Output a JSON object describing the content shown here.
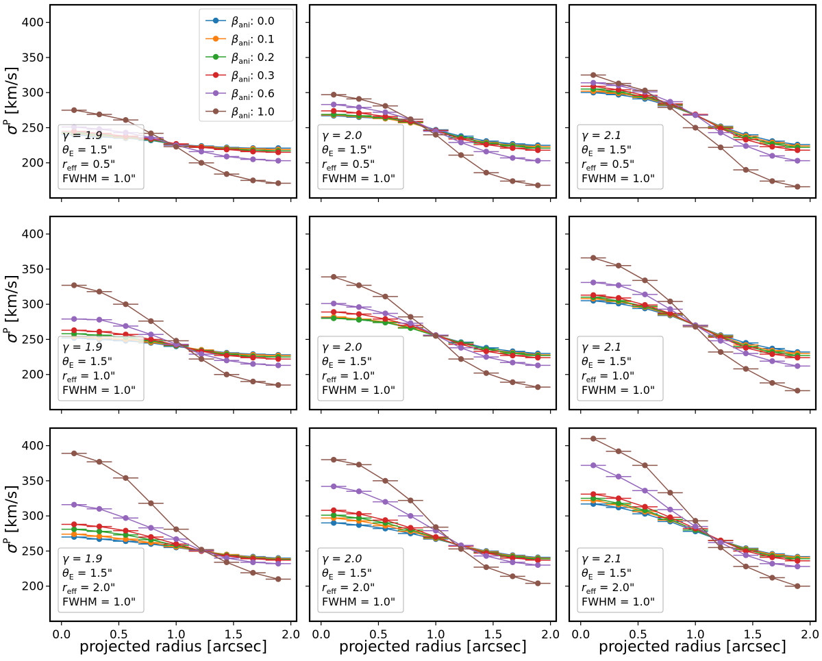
{
  "figure": {
    "ylabel_main": "σ",
    "ylabel_sup": "P",
    "ylabel_unit": " [km/s]",
    "xlabel": "projected radius [arcsec]",
    "x_ticks": [
      "0.0",
      "0.5",
      "1.0",
      "1.5",
      "2.0"
    ],
    "y_ticks": [
      "200",
      "250",
      "300",
      "350",
      "400"
    ]
  },
  "legend": {
    "entries": [
      {
        "label_main": "β",
        "label_sub": "ani",
        "label_val": ": 0.0",
        "color": "#1f77b4"
      },
      {
        "label_main": "β",
        "label_sub": "ani",
        "label_val": ": 0.1",
        "color": "#ff7f0e"
      },
      {
        "label_main": "β",
        "label_sub": "ani",
        "label_val": ": 0.2",
        "color": "#2ca02c"
      },
      {
        "label_main": "β",
        "label_sub": "ani",
        "label_val": ": 0.3",
        "color": "#d62728"
      },
      {
        "label_main": "β",
        "label_sub": "ani",
        "label_val": ": 0.6",
        "color": "#9467bd"
      },
      {
        "label_main": "β",
        "label_sub": "ani",
        "label_val": ": 1.0",
        "color": "#8c564b"
      }
    ]
  },
  "chart_data": [
    {
      "type": "line",
      "title": "",
      "xlabel": "projected radius [arcsec]",
      "ylabel": "σ^P [km/s]",
      "xlim": [
        -0.1,
        2.05
      ],
      "ylim": [
        150,
        425
      ],
      "row": 1,
      "col": 1,
      "annotation": [
        "γ = 1.9",
        "θ_E = 1.5\"",
        "r_eff = 0.5\"",
        "FWHM = 1.0\""
      ],
      "x": [
        0.11,
        0.33,
        0.56,
        0.78,
        1.0,
        1.22,
        1.44,
        1.67,
        1.89
      ],
      "series": [
        {
          "name": "β_ani: 0.0",
          "values": [
            240,
            237,
            235,
            232,
            226,
            224,
            222,
            221,
            221
          ]
        },
        {
          "name": "β_ani: 0.1",
          "values": [
            242,
            239,
            236,
            233,
            226,
            223,
            221,
            220,
            219
          ]
        },
        {
          "name": "β_ani: 0.2",
          "values": [
            243,
            240,
            237,
            233,
            226,
            222,
            220,
            218,
            217
          ]
        },
        {
          "name": "β_ani: 0.3",
          "values": [
            245,
            242,
            238,
            234,
            227,
            222,
            219,
            216,
            215
          ]
        },
        {
          "name": "β_ani: 0.6",
          "values": [
            251,
            248,
            243,
            236,
            225,
            216,
            209,
            205,
            203
          ]
        },
        {
          "name": "β_ani: 1.0",
          "values": [
            275,
            269,
            261,
            242,
            223,
            200,
            184,
            175,
            171
          ]
        }
      ]
    },
    {
      "type": "line",
      "title": "",
      "xlabel": "projected radius [arcsec]",
      "ylabel": "σ^P [km/s]",
      "xlim": [
        -0.1,
        2.05
      ],
      "ylim": [
        150,
        425
      ],
      "row": 1,
      "col": 2,
      "annotation": [
        "γ = 2.0",
        "θ_E = 1.5\"",
        "r_eff = 0.5\"",
        "FWHM = 1.0\""
      ],
      "x": [
        0.11,
        0.33,
        0.56,
        0.78,
        1.0,
        1.22,
        1.44,
        1.67,
        1.89
      ],
      "series": [
        {
          "name": "β_ani: 0.0",
          "values": [
            267,
            265,
            263,
            258,
            247,
            238,
            231,
            227,
            225
          ]
        },
        {
          "name": "β_ani: 0.1",
          "values": [
            268,
            266,
            263,
            257,
            246,
            236,
            229,
            225,
            223
          ]
        },
        {
          "name": "β_ani: 0.2",
          "values": [
            269,
            267,
            264,
            258,
            246,
            236,
            228,
            224,
            221
          ]
        },
        {
          "name": "β_ani: 0.3",
          "values": [
            274,
            271,
            266,
            259,
            246,
            234,
            226,
            221,
            218
          ]
        },
        {
          "name": "β_ani: 0.6",
          "values": [
            283,
            279,
            272,
            262,
            245,
            229,
            216,
            207,
            203
          ]
        },
        {
          "name": "β_ani: 1.0",
          "values": [
            297,
            291,
            281,
            262,
            240,
            211,
            186,
            174,
            168
          ]
        }
      ]
    },
    {
      "type": "line",
      "title": "",
      "xlabel": "projected radius [arcsec]",
      "ylabel": "σ^P [km/s]",
      "xlim": [
        -0.1,
        2.05
      ],
      "ylim": [
        150,
        425
      ],
      "row": 1,
      "col": 3,
      "annotation": [
        "γ = 2.1",
        "θ_E = 1.5\"",
        "r_eff = 0.5\"",
        "FWHM = 1.0\""
      ],
      "x": [
        0.11,
        0.33,
        0.56,
        0.78,
        1.0,
        1.22,
        1.44,
        1.67,
        1.89
      ],
      "series": [
        {
          "name": "β_ani: 0.0",
          "values": [
            300,
            297,
            291,
            281,
            268,
            252,
            240,
            231,
            226
          ]
        },
        {
          "name": "β_ani: 0.1",
          "values": [
            302,
            299,
            293,
            282,
            268,
            251,
            238,
            229,
            224
          ]
        },
        {
          "name": "β_ani: 0.2",
          "values": [
            305,
            301,
            294,
            283,
            268,
            250,
            236,
            227,
            222
          ]
        },
        {
          "name": "β_ani: 0.3",
          "values": [
            309,
            304,
            296,
            284,
            269,
            249,
            233,
            223,
            218
          ]
        },
        {
          "name": "β_ani: 0.6",
          "values": [
            314,
            310,
            301,
            287,
            268,
            243,
            224,
            210,
            203
          ]
        },
        {
          "name": "β_ani: 1.0",
          "values": [
            325,
            313,
            303,
            279,
            250,
            222,
            190,
            174,
            166
          ]
        }
      ]
    },
    {
      "type": "line",
      "title": "",
      "xlabel": "projected radius [arcsec]",
      "ylabel": "σ^P [km/s]",
      "xlim": [
        -0.1,
        2.05
      ],
      "ylim": [
        150,
        425
      ],
      "row": 2,
      "col": 1,
      "annotation": [
        "γ = 1.9",
        "θ_E = 1.5\"",
        "r_eff = 1.0\"",
        "FWHM = 1.0\""
      ],
      "x": [
        0.11,
        0.33,
        0.56,
        0.78,
        1.0,
        1.22,
        1.44,
        1.67,
        1.89
      ],
      "series": [
        {
          "name": "β_ani: 0.0",
          "values": [
            252,
            250,
            248,
            245,
            240,
            235,
            231,
            229,
            228
          ]
        },
        {
          "name": "β_ani: 0.1",
          "values": [
            254,
            252,
            250,
            246,
            241,
            235,
            230,
            228,
            227
          ]
        },
        {
          "name": "β_ani: 0.2",
          "values": [
            258,
            256,
            253,
            248,
            241,
            234,
            229,
            226,
            225
          ]
        },
        {
          "name": "β_ani: 0.3",
          "values": [
            263,
            261,
            257,
            250,
            242,
            233,
            227,
            224,
            222
          ]
        },
        {
          "name": "β_ani: 0.6",
          "values": [
            279,
            278,
            269,
            257,
            243,
            229,
            220,
            215,
            213
          ]
        },
        {
          "name": "β_ani: 1.0",
          "values": [
            327,
            318,
            300,
            276,
            248,
            222,
            200,
            190,
            185
          ]
        }
      ]
    },
    {
      "type": "line",
      "title": "",
      "xlabel": "projected radius [arcsec]",
      "ylabel": "σ^P [km/s]",
      "xlim": [
        -0.1,
        2.05
      ],
      "ylim": [
        150,
        425
      ],
      "row": 2,
      "col": 2,
      "annotation": [
        "γ = 2.0",
        "θ_E = 1.5\"",
        "r_eff = 1.0\"",
        "FWHM = 1.0\""
      ],
      "x": [
        0.11,
        0.33,
        0.56,
        0.78,
        1.0,
        1.22,
        1.44,
        1.67,
        1.89
      ],
      "series": [
        {
          "name": "β_ani: 0.0",
          "values": [
            281,
            278,
            274,
            267,
            256,
            246,
            238,
            233,
            230
          ]
        },
        {
          "name": "β_ani: 0.1",
          "values": [
            282,
            279,
            275,
            267,
            256,
            245,
            236,
            231,
            228
          ]
        },
        {
          "name": "β_ani: 0.2",
          "values": [
            280,
            278,
            274,
            266,
            255,
            245,
            236,
            230,
            227
          ]
        },
        {
          "name": "β_ani: 0.3",
          "values": [
            289,
            286,
            279,
            270,
            256,
            243,
            233,
            227,
            224
          ]
        },
        {
          "name": "β_ani: 0.6",
          "values": [
            301,
            296,
            287,
            273,
            256,
            238,
            225,
            217,
            213
          ]
        },
        {
          "name": "β_ani: 1.0",
          "values": [
            339,
            327,
            311,
            282,
            255,
            222,
            202,
            189,
            182
          ]
        }
      ]
    },
    {
      "type": "line",
      "title": "",
      "xlabel": "projected radius [arcsec]",
      "ylabel": "σ^P [km/s]",
      "xlim": [
        -0.1,
        2.05
      ],
      "ylim": [
        150,
        425
      ],
      "row": 2,
      "col": 3,
      "annotation": [
        "γ = 2.1",
        "θ_E = 1.5\"",
        "r_eff = 1.0\"",
        "FWHM = 1.0\""
      ],
      "x": [
        0.11,
        0.33,
        0.56,
        0.78,
        1.0,
        1.22,
        1.44,
        1.67,
        1.89
      ],
      "series": [
        {
          "name": "β_ani: 0.0",
          "values": [
            305,
            301,
            294,
            284,
            270,
            256,
            245,
            237,
            232
          ]
        },
        {
          "name": "β_ani: 0.1",
          "values": [
            308,
            304,
            296,
            285,
            270,
            255,
            242,
            234,
            230
          ]
        },
        {
          "name": "β_ani: 0.2",
          "values": [
            310,
            305,
            297,
            286,
            270,
            254,
            240,
            232,
            227
          ]
        },
        {
          "name": "β_ani: 0.3",
          "values": [
            313,
            309,
            299,
            287,
            270,
            253,
            238,
            229,
            224
          ]
        },
        {
          "name": "β_ani: 0.6",
          "values": [
            331,
            327,
            314,
            293,
            270,
            248,
            230,
            219,
            212
          ]
        },
        {
          "name": "β_ani: 1.0",
          "values": [
            366,
            355,
            334,
            304,
            268,
            232,
            208,
            188,
            177
          ]
        }
      ]
    },
    {
      "type": "line",
      "title": "",
      "xlabel": "projected radius [arcsec]",
      "ylabel": "σ^P [km/s]",
      "xlim": [
        -0.1,
        2.05
      ],
      "ylim": [
        150,
        425
      ],
      "row": 3,
      "col": 1,
      "annotation": [
        "γ = 1.9",
        "θ_E = 1.5\"",
        "r_eff = 2.0\"",
        "FWHM = 1.0\""
      ],
      "x": [
        0.11,
        0.33,
        0.56,
        0.78,
        1.0,
        1.22,
        1.44,
        1.67,
        1.89
      ],
      "series": [
        {
          "name": "β_ani: 0.0",
          "values": [
            270,
            267,
            264,
            260,
            255,
            250,
            245,
            242,
            240
          ]
        },
        {
          "name": "β_ani: 0.1",
          "values": [
            274,
            271,
            267,
            262,
            256,
            250,
            245,
            241,
            239
          ]
        },
        {
          "name": "β_ani: 0.2",
          "values": [
            281,
            278,
            273,
            266,
            258,
            250,
            244,
            240,
            238
          ]
        },
        {
          "name": "β_ani: 0.3",
          "values": [
            288,
            285,
            279,
            270,
            260,
            250,
            243,
            239,
            237
          ]
        },
        {
          "name": "β_ani: 0.6",
          "values": [
            316,
            310,
            297,
            283,
            267,
            251,
            240,
            234,
            232
          ]
        },
        {
          "name": "β_ani: 1.0",
          "values": [
            389,
            377,
            354,
            318,
            281,
            252,
            234,
            219,
            210
          ]
        }
      ]
    },
    {
      "type": "line",
      "title": "",
      "xlabel": "projected radius [arcsec]",
      "ylabel": "σ^P [km/s]",
      "xlim": [
        -0.1,
        2.05
      ],
      "ylim": [
        150,
        425
      ],
      "row": 3,
      "col": 2,
      "annotation": [
        "γ = 2.0",
        "θ_E = 1.5\"",
        "r_eff = 2.0\"",
        "FWHM = 1.0\""
      ],
      "x": [
        0.11,
        0.33,
        0.56,
        0.78,
        1.0,
        1.22,
        1.44,
        1.67,
        1.89
      ],
      "series": [
        {
          "name": "β_ani: 0.0",
          "values": [
            290,
            287,
            282,
            275,
            267,
            258,
            250,
            244,
            241
          ]
        },
        {
          "name": "β_ani: 0.1",
          "values": [
            297,
            293,
            286,
            278,
            268,
            258,
            249,
            243,
            240
          ]
        },
        {
          "name": "β_ani: 0.2",
          "values": [
            301,
            297,
            290,
            280,
            269,
            257,
            248,
            242,
            239
          ]
        },
        {
          "name": "β_ani: 0.3",
          "values": [
            308,
            303,
            294,
            283,
            270,
            257,
            247,
            240,
            237
          ]
        },
        {
          "name": "β_ani: 0.6",
          "values": [
            342,
            335,
            320,
            300,
            279,
            258,
            243,
            234,
            230
          ]
        },
        {
          "name": "β_ani: 1.0",
          "values": [
            380,
            373,
            350,
            322,
            284,
            253,
            227,
            214,
            204
          ]
        }
      ]
    },
    {
      "type": "line",
      "title": "",
      "xlabel": "projected radius [arcsec]",
      "ylabel": "σ^P [km/s]",
      "xlim": [
        -0.1,
        2.05
      ],
      "ylim": [
        150,
        425
      ],
      "row": 3,
      "col": 3,
      "annotation": [
        "γ = 2.1",
        "θ_E = 1.5\"",
        "r_eff = 2.0\"",
        "FWHM = 1.0\""
      ],
      "x": [
        0.11,
        0.33,
        0.56,
        0.78,
        1.0,
        1.22,
        1.44,
        1.67,
        1.89
      ],
      "series": [
        {
          "name": "β_ani: 0.0",
          "values": [
            317,
            312,
            303,
            292,
            278,
            265,
            254,
            246,
            242
          ]
        },
        {
          "name": "β_ani: 0.1",
          "values": [
            322,
            316,
            306,
            294,
            280,
            265,
            253,
            245,
            241
          ]
        },
        {
          "name": "β_ani: 0.2",
          "values": [
            325,
            318,
            308,
            295,
            280,
            265,
            252,
            243,
            239
          ]
        },
        {
          "name": "β_ani: 0.3",
          "values": [
            331,
            325,
            313,
            298,
            282,
            265,
            250,
            241,
            236
          ]
        },
        {
          "name": "β_ani: 0.6",
          "values": [
            372,
            356,
            336,
            309,
            285,
            262,
            244,
            232,
            228
          ]
        },
        {
          "name": "β_ani: 1.0",
          "values": [
            410,
            392,
            372,
            333,
            293,
            255,
            228,
            212,
            200
          ]
        }
      ]
    }
  ]
}
